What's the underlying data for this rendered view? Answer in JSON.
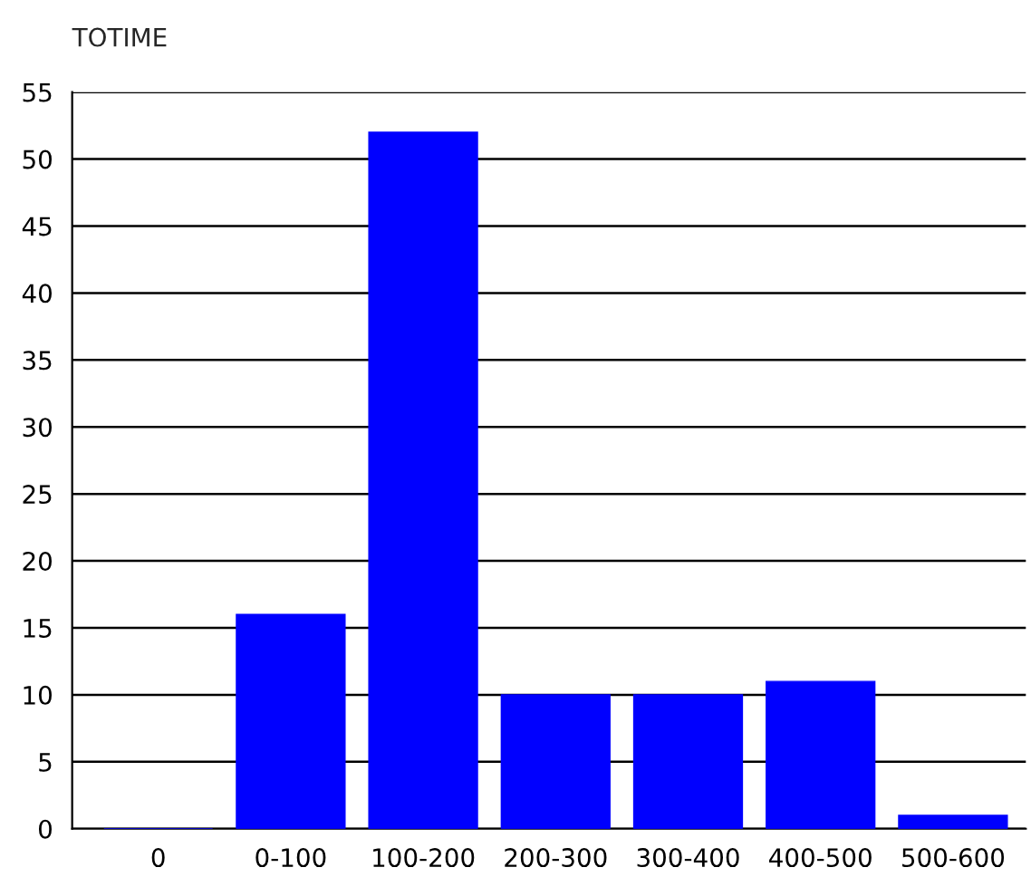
{
  "chart_data": {
    "type": "bar",
    "title": "TOTIME",
    "categories": [
      "0",
      "0-100",
      "100-200",
      "200-300",
      "300-400",
      "400-500",
      "500-600"
    ],
    "values": [
      0,
      16,
      52,
      10,
      10,
      11,
      1
    ],
    "color": "#0000ff",
    "ylim": [
      0,
      55
    ],
    "yticks": [
      0,
      5,
      10,
      15,
      20,
      25,
      30,
      35,
      40,
      45,
      50,
      55
    ],
    "grid": "y",
    "legend": false
  }
}
